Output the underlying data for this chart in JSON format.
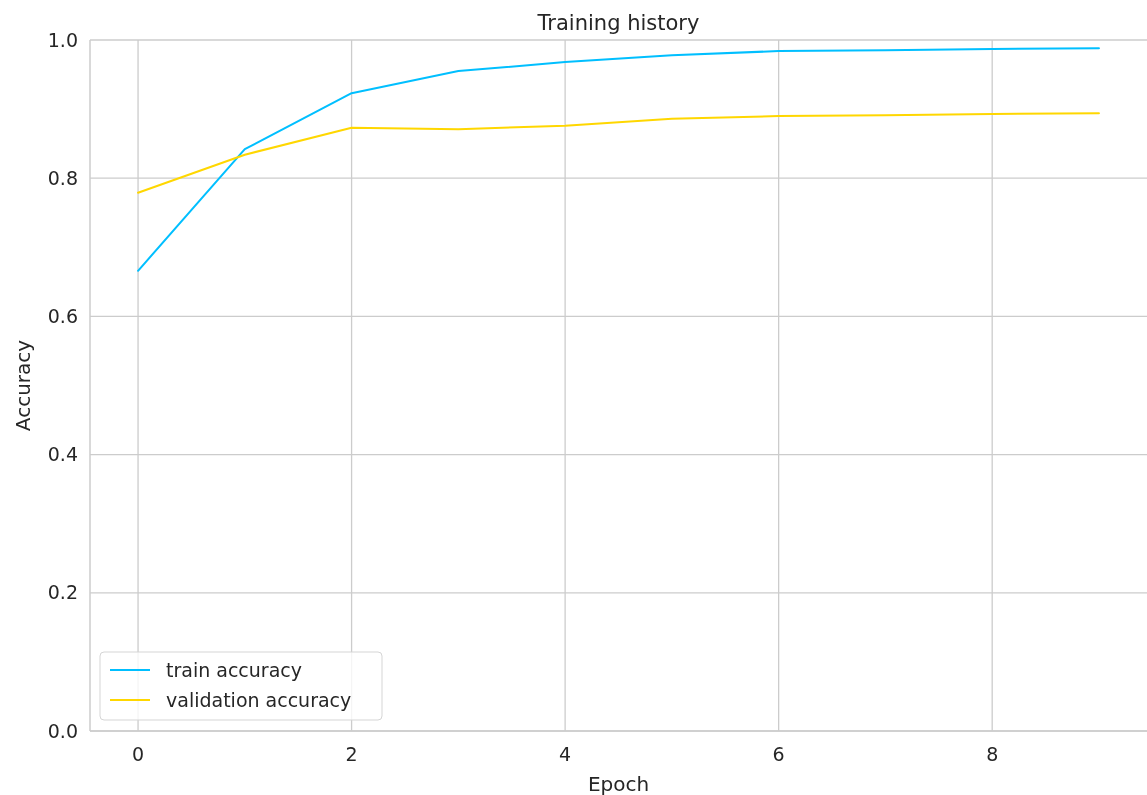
{
  "chart_data": {
    "type": "line",
    "title": "Training history",
    "xlabel": "Epoch",
    "ylabel": "Accuracy",
    "x": [
      0,
      1,
      2,
      3,
      4,
      5,
      6,
      7,
      8,
      9
    ],
    "series": [
      {
        "name": "train accuracy",
        "color": "#00bfff",
        "values": [
          0.666,
          0.842,
          0.923,
          0.955,
          0.968,
          0.978,
          0.984,
          0.985,
          0.987,
          0.988
        ]
      },
      {
        "name": "validation accuracy",
        "color": "#ffd700",
        "values": [
          0.779,
          0.834,
          0.873,
          0.871,
          0.876,
          0.886,
          0.89,
          0.891,
          0.893,
          0.894
        ]
      }
    ],
    "xlim": [
      -0.45,
      9.45
    ],
    "xticks": [
      0,
      2,
      4,
      6,
      8
    ],
    "ylim": [
      0,
      1
    ],
    "yticks": [
      {
        "value": 0,
        "label": "0.0"
      },
      {
        "value": 0.2,
        "label": "0.2"
      },
      {
        "value": 0.4,
        "label": "0.4"
      },
      {
        "value": 0.6,
        "label": "0.6"
      },
      {
        "value": 0.8,
        "label": "0.8"
      },
      {
        "value": 1,
        "label": "1.0"
      }
    ],
    "grid": true,
    "legend": "bottom left",
    "marker": "none",
    "line_style": "solid"
  }
}
